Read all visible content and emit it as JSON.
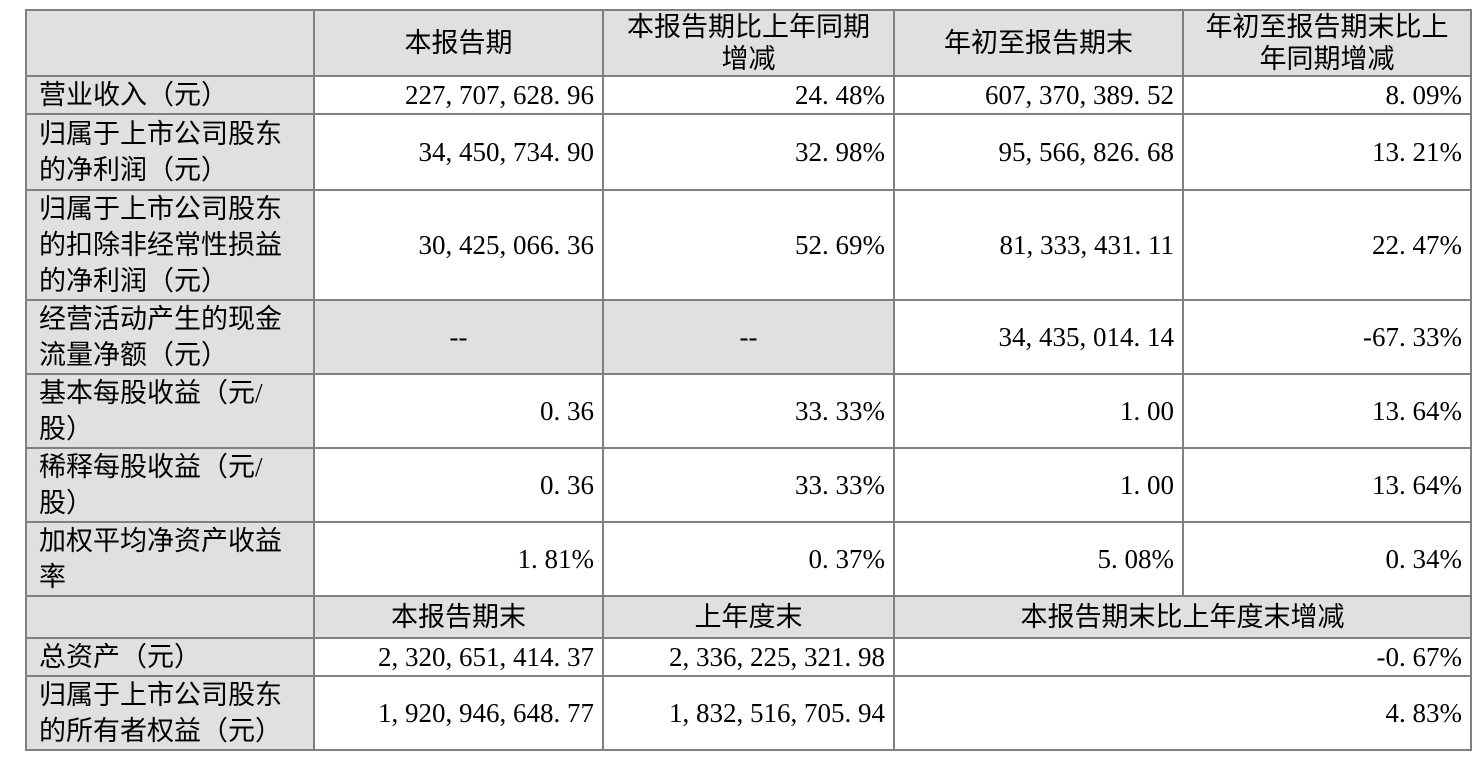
{
  "table": {
    "colors": {
      "header_bg": "#e0e0e0",
      "border": "#808080",
      "text": "#000000",
      "row_bg": "#ffffff"
    },
    "header1": {
      "c0": "",
      "c1": "本报告期",
      "c2": "本报告期比上年同期\n增减",
      "c3": "年初至报告期末",
      "c4": "年初至报告期末比上\n年同期增减"
    },
    "rows": [
      {
        "label": "营业收入（元）",
        "c1": "227, 707, 628. 96",
        "c2": "24. 48%",
        "c3": "607, 370, 389. 52",
        "c4": "8. 09%"
      },
      {
        "label": "归属于上市公司股东\n的净利润（元）",
        "c1": "34, 450, 734. 90",
        "c2": "32. 98%",
        "c3": "95, 566, 826. 68",
        "c4": "13. 21%"
      },
      {
        "label": "归属于上市公司股东\n的扣除非经常性损益\n的净利润（元）",
        "c1": "30, 425, 066. 36",
        "c2": "52. 69%",
        "c3": "81, 333, 431. 11",
        "c4": "22. 47%"
      },
      {
        "label": "经营活动产生的现金\n流量净额（元）",
        "c1": "--",
        "c2": "--",
        "c3": "34, 435, 014. 14",
        "c4": "-67. 33%"
      },
      {
        "label": "基本每股收益（元/\n股）",
        "c1": "0. 36",
        "c2": "33. 33%",
        "c3": "1. 00",
        "c4": "13. 64%"
      },
      {
        "label": "稀释每股收益（元/\n股）",
        "c1": "0. 36",
        "c2": "33. 33%",
        "c3": "1. 00",
        "c4": "13. 64%"
      },
      {
        "label": "加权平均净资产收益\n率",
        "c1": "1. 81%",
        "c2": "0. 37%",
        "c3": "5. 08%",
        "c4": "0. 34%"
      }
    ],
    "header2": {
      "c0": "",
      "c1": "本报告期末",
      "c2": "上年度末",
      "c3_4": "本报告期末比上年度末增减"
    },
    "rows2": [
      {
        "label": "总资产（元）",
        "c1": "2, 320, 651, 414. 37",
        "c2": "2, 336, 225, 321. 98",
        "c3_4": "-0. 67%"
      },
      {
        "label": "归属于上市公司股东\n的所有者权益（元）",
        "c1": "1, 920, 946, 648. 77",
        "c2": "1, 832, 516, 705. 94",
        "c3_4": "4. 83%"
      }
    ]
  }
}
